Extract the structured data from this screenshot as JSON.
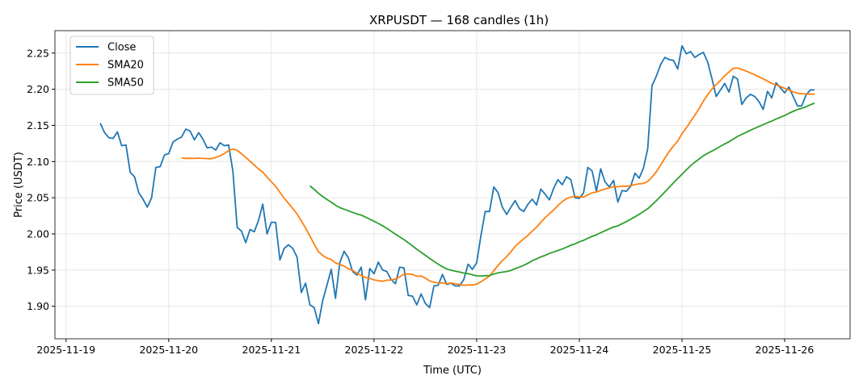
{
  "chart_data": {
    "type": "line",
    "title": "XRPUSDT — 168 candles (1h)",
    "xlabel": "Time (UTC)",
    "ylabel": "Price (USDT)",
    "start_time": "2025-11-19T08:00:00Z",
    "interval_hours": 1,
    "x_ticks": [
      "2025-11-19",
      "2025-11-20",
      "2025-11-21",
      "2025-11-22",
      "2025-11-23",
      "2025-11-24",
      "2025-11-25",
      "2025-11-26"
    ],
    "y_ticks": [
      1.9,
      1.95,
      2.0,
      2.05,
      2.1,
      2.15,
      2.2,
      2.25
    ],
    "y_tick_labels": [
      "1.90",
      "1.95",
      "2.00",
      "2.05",
      "2.10",
      "2.15",
      "2.20",
      "2.25"
    ],
    "xlim_hours_from_2025_11_19": [
      -2.6,
      183.3
    ],
    "ylim": [
      1.855,
      2.281
    ],
    "grid": true,
    "legend_position": "top-left",
    "series": [
      {
        "name": "Close",
        "color": "#1f77b4",
        "values": [
          2.153,
          2.14,
          2.133,
          2.132,
          2.141,
          2.122,
          2.123,
          2.085,
          2.079,
          2.057,
          2.048,
          2.037,
          2.05,
          2.092,
          2.093,
          2.109,
          2.111,
          2.127,
          2.131,
          2.134,
          2.145,
          2.142,
          2.13,
          2.14,
          2.131,
          2.119,
          2.12,
          2.116,
          2.126,
          2.122,
          2.123,
          2.087,
          2.009,
          2.004,
          1.988,
          2.006,
          2.003,
          2.019,
          2.041,
          2.0,
          2.016,
          2.016,
          1.964,
          1.98,
          1.985,
          1.98,
          1.968,
          1.919,
          1.932,
          1.902,
          1.898,
          1.876,
          1.908,
          1.929,
          1.951,
          1.911,
          1.96,
          1.976,
          1.967,
          1.948,
          1.943,
          1.954,
          1.909,
          1.952,
          1.945,
          1.961,
          1.95,
          1.948,
          1.937,
          1.931,
          1.954,
          1.953,
          1.915,
          1.914,
          1.902,
          1.917,
          1.904,
          1.898,
          1.928,
          1.929,
          1.944,
          1.93,
          1.932,
          1.928,
          1.928,
          1.937,
          1.958,
          1.951,
          1.96,
          1.998,
          2.031,
          2.031,
          2.065,
          2.057,
          2.037,
          2.027,
          2.037,
          2.046,
          2.035,
          2.031,
          2.041,
          2.048,
          2.04,
          2.062,
          2.055,
          2.047,
          2.063,
          2.075,
          2.068,
          2.079,
          2.075,
          2.05,
          2.049,
          2.057,
          2.092,
          2.087,
          2.059,
          2.09,
          2.072,
          2.065,
          2.074,
          2.044,
          2.06,
          2.059,
          2.066,
          2.084,
          2.077,
          2.091,
          2.118,
          2.205,
          2.218,
          2.234,
          2.244,
          2.241,
          2.24,
          2.228,
          2.26,
          2.249,
          2.252,
          2.244,
          2.248,
          2.251,
          2.238,
          2.215,
          2.19,
          2.199,
          2.208,
          2.196,
          2.218,
          2.214,
          2.179,
          2.188,
          2.193,
          2.19,
          2.183,
          2.172,
          2.197,
          2.188,
          2.209,
          2.202,
          2.195,
          2.203,
          2.19,
          2.177,
          2.177,
          2.192,
          2.199,
          2.199
        ]
      },
      {
        "name": "SMA20",
        "color": "#ff7f0e",
        "window": 20
      },
      {
        "name": "SMA50",
        "color": "#2ca02c",
        "window": 50
      }
    ]
  }
}
